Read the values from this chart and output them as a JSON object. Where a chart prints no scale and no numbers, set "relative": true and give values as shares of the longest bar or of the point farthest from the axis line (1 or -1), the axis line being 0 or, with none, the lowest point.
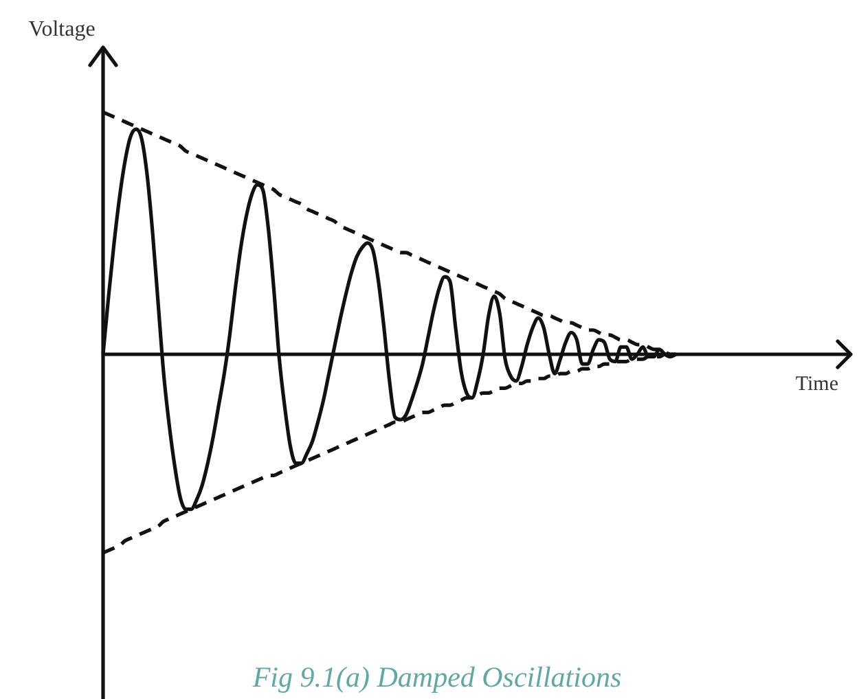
{
  "chart_data": {
    "type": "line",
    "relative": true,
    "xlabel": "Time",
    "ylabel": "Voltage",
    "annotations": [
      "Fig 9.1(a) Damped Oscillations"
    ],
    "categories": [
      null,
      null,
      null,
      null,
      null,
      null,
      null,
      null,
      null,
      null,
      null,
      null,
      null,
      null,
      null,
      null,
      null,
      null,
      null,
      null,
      null,
      null,
      null,
      null,
      null,
      null,
      null,
      null,
      null,
      null,
      null,
      null,
      null,
      null,
      null,
      null,
      null,
      null,
      null,
      null,
      null,
      null,
      null,
      null,
      null,
      null,
      null,
      null,
      null,
      null,
      null,
      null,
      null,
      null,
      null,
      null,
      null,
      null,
      null,
      null,
      null,
      null,
      null,
      null,
      null,
      null,
      null,
      null,
      null,
      null,
      null,
      null,
      null,
      null,
      null,
      null,
      null,
      null,
      null,
      null,
      null,
      null,
      null,
      null,
      null,
      null,
      null,
      null,
      null,
      null,
      null,
      null,
      null,
      null,
      null,
      null,
      null,
      null,
      null,
      null,
      null,
      null,
      null,
      null,
      null,
      null,
      null,
      null,
      null,
      null,
      null,
      null,
      null,
      null,
      null,
      null,
      null,
      null,
      null,
      null,
      null,
      null,
      null,
      null,
      null,
      null,
      null,
      null,
      null,
      null,
      null,
      null,
      null,
      null,
      null
    ],
    "series": [
      {
        "color": "#111111",
        "line_style": "solid",
        "values": [
          0,
          0.24,
          0.46,
          0.65,
          0.8,
          0.9,
          0.93,
          0.89,
          0.74,
          0.5,
          0.21,
          -0.08,
          -0.29,
          -0.46,
          -0.59,
          -0.64,
          -0.64,
          -0.6,
          -0.54,
          -0.45,
          -0.34,
          -0.21,
          -0.08,
          0.08,
          0.27,
          0.44,
          0.57,
          0.66,
          0.7,
          0.68,
          0.52,
          0.27,
          -0.02,
          -0.22,
          -0.38,
          -0.45,
          -0.45,
          -0.41,
          -0.36,
          -0.28,
          -0.19,
          -0.08,
          0.03,
          0.14,
          0.24,
          0.33,
          0.4,
          0.44,
          0.46,
          0.43,
          0.3,
          0.11,
          -0.11,
          -0.26,
          -0.27,
          -0.25,
          -0.19,
          -0.12,
          -0.04,
          0.07,
          0.18,
          0.27,
          0.32,
          0.3,
          0.11,
          -0.07,
          -0.16,
          -0.18,
          -0.11,
          0,
          0.16,
          0.24,
          0.17,
          -0.02,
          -0.09,
          -0.11,
          -0.05,
          0.04,
          0.11,
          0.15,
          0.11,
          0,
          -0.08,
          -0.02,
          0.05,
          0.09,
          0.06,
          -0.04,
          -0.04,
          0.02,
          0.06,
          0.05,
          -0.02,
          -0.03,
          0.03,
          0.03,
          -0.02,
          0,
          0.03,
          -0.01,
          -0.01,
          0.02,
          0,
          -0.01,
          0,
          null,
          null,
          null,
          null,
          null,
          null,
          null,
          null,
          null,
          null,
          null,
          null,
          null,
          null,
          null,
          null,
          null,
          null,
          null,
          null,
          null,
          null,
          null,
          null,
          null,
          null,
          null,
          null,
          null,
          null
        ]
      },
      {
        "color": "#111111",
        "line_style": "dashed",
        "values": [
          1,
          0.99,
          0.98,
          0.97,
          0.96,
          0.95,
          0.94,
          0.93,
          0.92,
          0.91,
          0.9,
          0.89,
          0.88,
          0.87,
          0.86,
          0.84,
          0.83,
          0.82,
          0.81,
          0.8,
          0.79,
          0.78,
          0.77,
          0.76,
          0.75,
          0.74,
          0.73,
          0.72,
          0.71,
          0.7,
          0.69,
          0.68,
          0.66,
          0.65,
          0.64,
          0.63,
          0.62,
          0.6,
          0.59,
          0.58,
          0.57,
          0.56,
          0.55,
          0.53,
          0.52,
          0.51,
          0.5,
          0.49,
          0.48,
          0.47,
          0.46,
          0.45,
          0.44,
          0.43,
          0.42,
          0.42,
          0.41,
          0.4,
          0.39,
          0.38,
          0.37,
          0.36,
          0.35,
          0.34,
          0.33,
          0.32,
          0.31,
          0.3,
          0.29,
          0.28,
          0.27,
          0.26,
          0.25,
          0.23,
          0.22,
          0.21,
          0.2,
          0.19,
          0.18,
          0.17,
          0.16,
          0.16,
          0.15,
          0.14,
          0.13,
          0.13,
          0.12,
          0.11,
          0.1,
          0.1,
          0.09,
          0.08,
          0.08,
          0.07,
          0.06,
          0.06,
          0.05,
          0.04,
          0.04,
          0.03,
          0.02,
          0.02,
          0.01,
          0,
          0,
          null,
          null,
          null,
          null,
          null,
          null,
          null,
          null,
          null,
          null,
          null,
          null,
          null,
          null,
          null,
          null,
          null,
          null,
          null,
          null,
          null,
          null,
          null,
          null,
          null,
          null,
          null,
          null,
          null,
          null
        ]
      },
      {
        "color": "#111111",
        "line_style": "dashed",
        "values": [
          -0.82,
          -0.81,
          -0.8,
          -0.79,
          -0.77,
          -0.76,
          -0.75,
          -0.74,
          -0.73,
          -0.72,
          -0.71,
          -0.69,
          -0.68,
          -0.67,
          -0.66,
          -0.65,
          -0.64,
          -0.63,
          -0.62,
          -0.61,
          -0.6,
          -0.59,
          -0.58,
          -0.57,
          -0.56,
          -0.55,
          -0.54,
          -0.53,
          -0.52,
          -0.51,
          -0.5,
          -0.5,
          -0.49,
          -0.48,
          -0.47,
          -0.46,
          -0.45,
          -0.44,
          -0.43,
          -0.42,
          -0.41,
          -0.4,
          -0.39,
          -0.38,
          -0.37,
          -0.36,
          -0.35,
          -0.34,
          -0.33,
          -0.32,
          -0.31,
          -0.3,
          -0.29,
          -0.28,
          -0.28,
          -0.27,
          -0.26,
          -0.25,
          -0.24,
          -0.24,
          -0.23,
          -0.22,
          -0.21,
          -0.21,
          -0.2,
          -0.19,
          -0.18,
          -0.18,
          -0.17,
          -0.16,
          -0.16,
          -0.15,
          -0.14,
          -0.14,
          -0.13,
          -0.12,
          -0.12,
          -0.11,
          -0.11,
          -0.1,
          -0.1,
          -0.09,
          -0.09,
          -0.08,
          -0.08,
          -0.07,
          -0.07,
          -0.06,
          -0.06,
          -0.05,
          -0.05,
          -0.04,
          -0.04,
          -0.03,
          -0.03,
          -0.03,
          -0.02,
          -0.02,
          -0.02,
          -0.01,
          -0.01,
          -0.01,
          0,
          0,
          0,
          null,
          null,
          null,
          null,
          null,
          null,
          null,
          null,
          null,
          null,
          null,
          null,
          null,
          null,
          null,
          null,
          null,
          null,
          null,
          null,
          null,
          null,
          null,
          null,
          null,
          null,
          null,
          null,
          null,
          null
        ]
      }
    ]
  }
}
